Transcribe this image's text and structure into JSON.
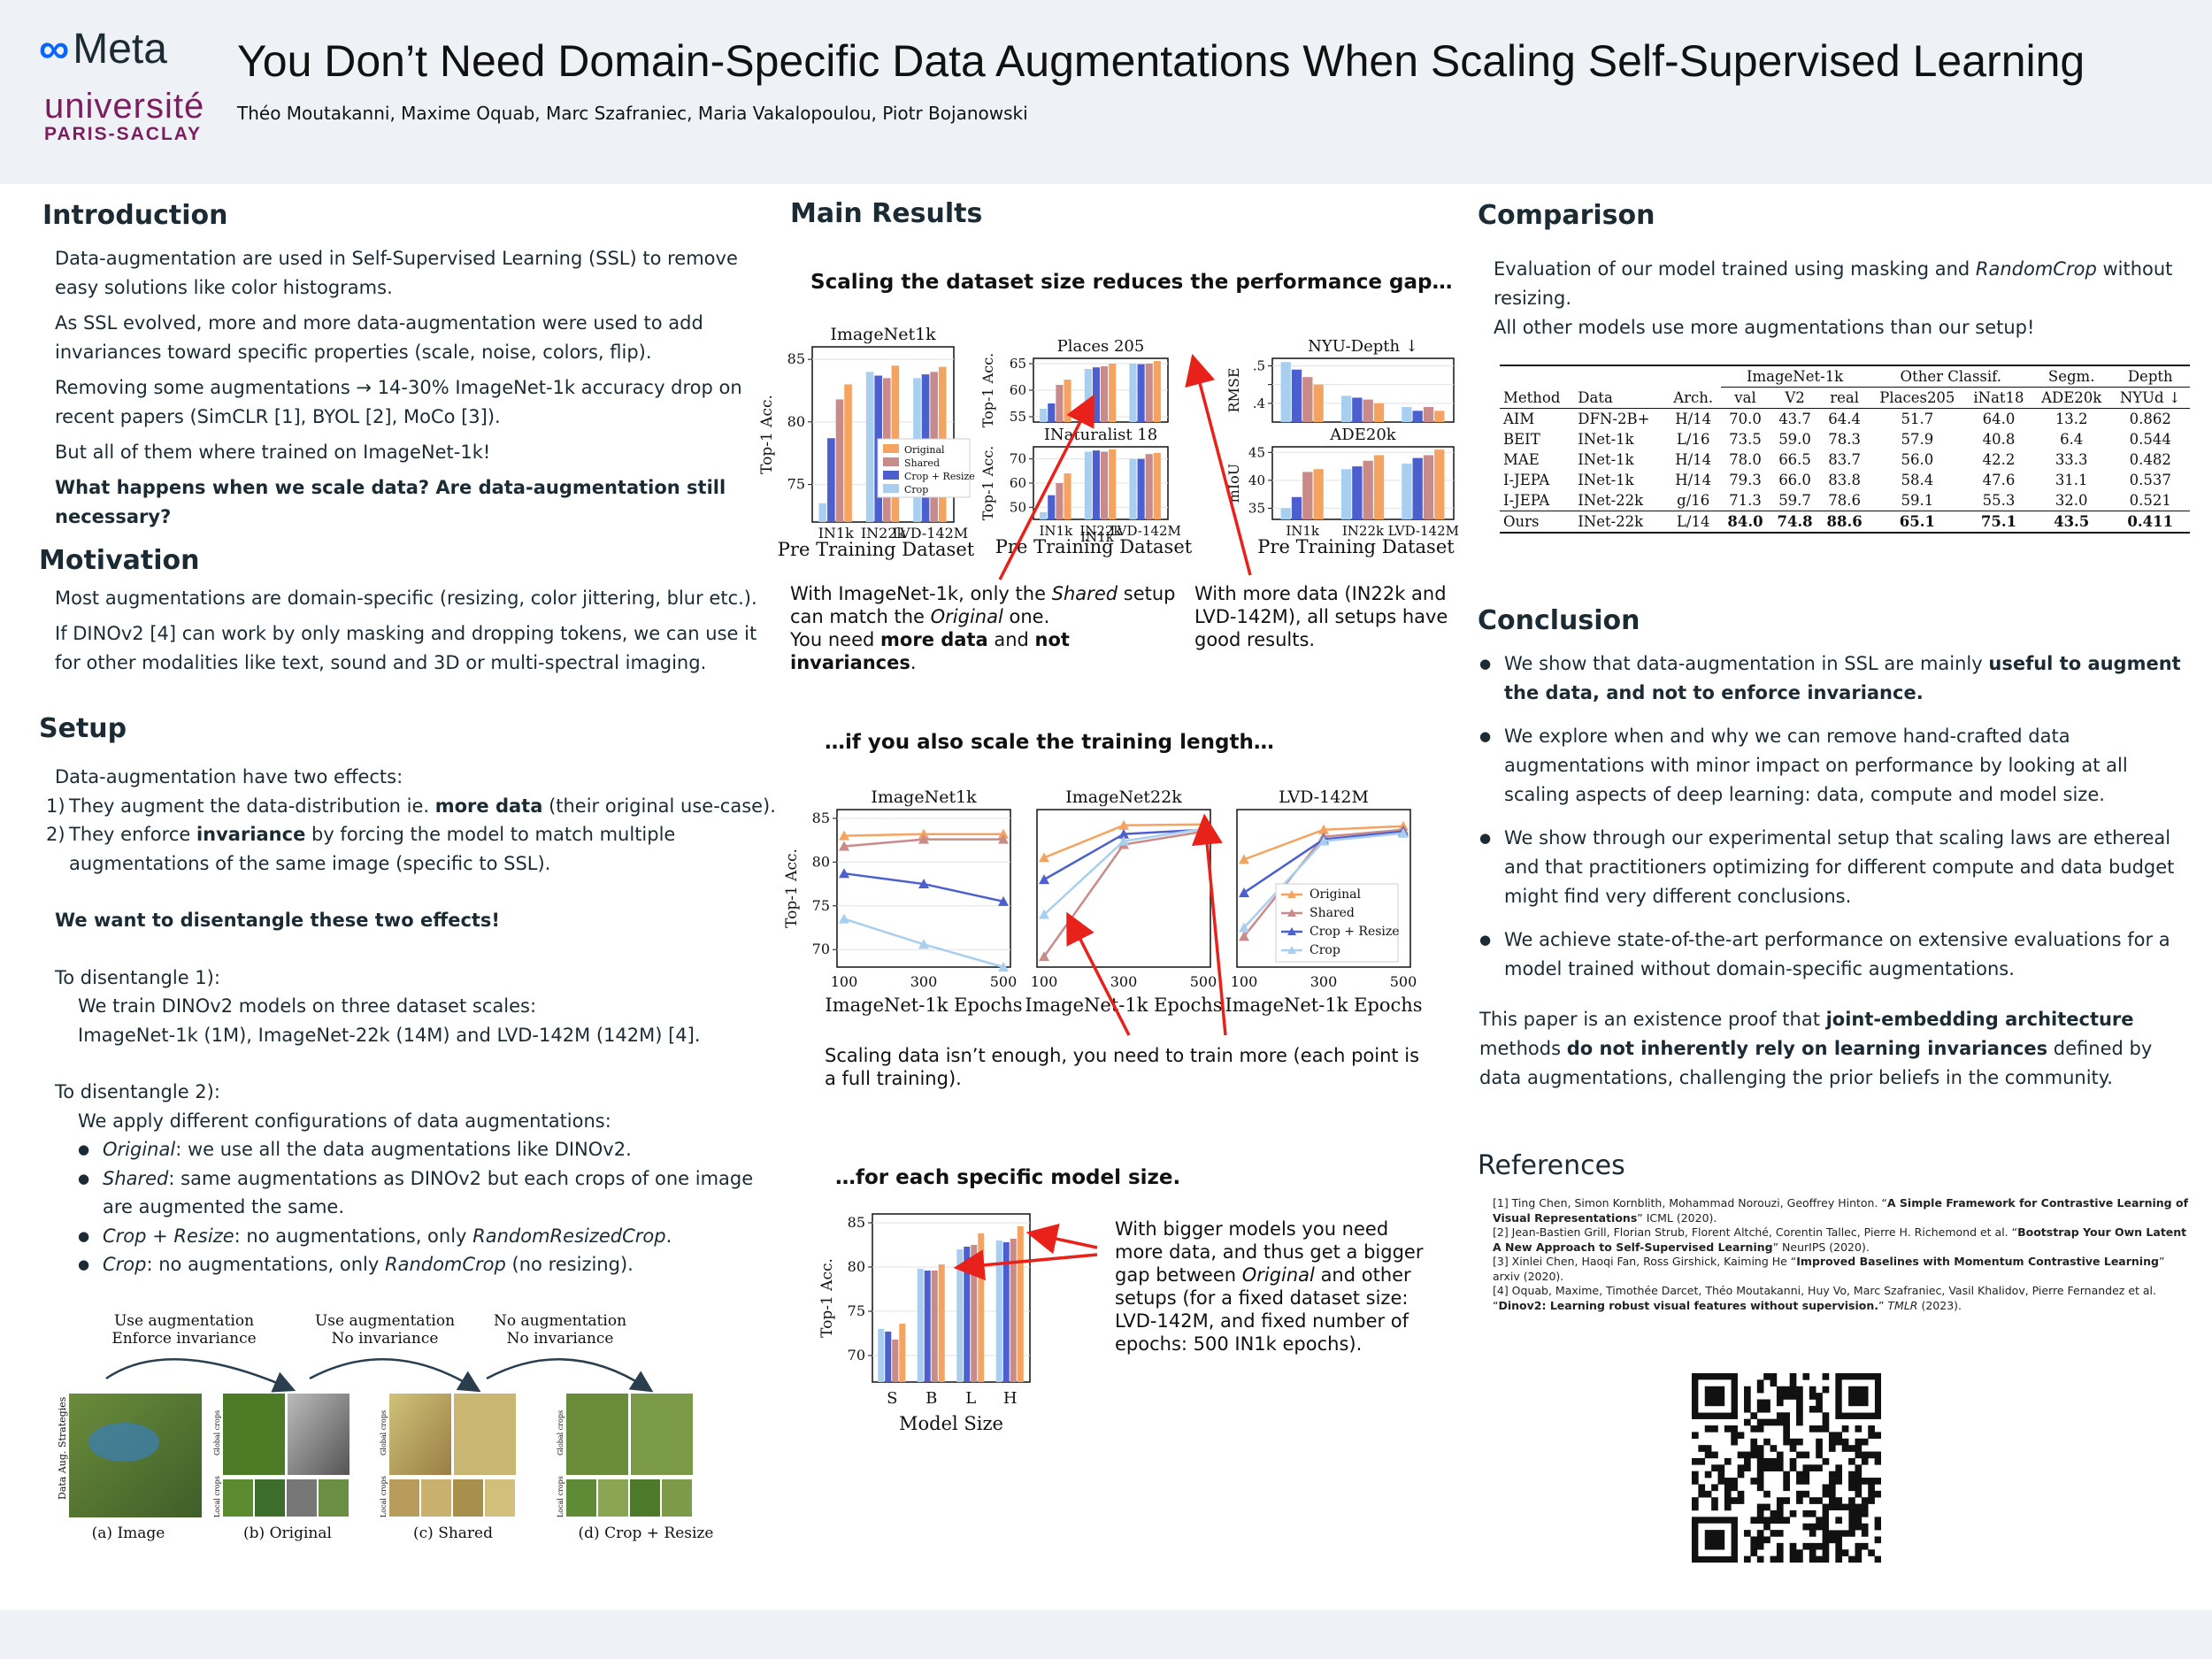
{
  "header": {
    "meta_logo": "Meta",
    "uni_line1": "université",
    "uni_line2": "PARIS-SACLAY",
    "title": "You Don’t Need Domain-Specific Data Augmentations When Scaling Self-Supervised Learning",
    "authors": "Théo Moutakanni, Maxime Oquab, Marc Szafraniec,  Maria Vakalopoulou, Piotr Bojanowski"
  },
  "intro": {
    "heading": "Introduction",
    "p1": "Data-augmentation are used in Self-Supervised Learning (SSL) to remove easy solutions like color histograms.",
    "p2": "As SSL evolved, more and more data-augmentation were used to add invariances toward specific properties (scale, noise, colors, flip).",
    "p3": "Removing some augmentations → 14-30% ImageNet-1k accuracy drop on recent papers (SimCLR [1], BYOL [2], MoCo [3]).",
    "p4": "But all of them where trained on ImageNet-1k!",
    "p5": "What happens when we scale data? Are data-augmentation still necessary?"
  },
  "motivation": {
    "heading": "Motivation",
    "p1": "Most augmentations are domain-specific (resizing, color jittering, blur etc.).",
    "p2": "If DINOv2 [4] can work by only masking and dropping tokens, we can use it for other modalities like text, sound and 3D or multi-spectral imaging."
  },
  "setup": {
    "heading": "Setup",
    "l1": "Data-augmentation have two effects:",
    "i1_num": "1)",
    "i1_a": "They augment the data-distribution ie. ",
    "i1_b": "more data",
    "i1_c": " (their original use-case).",
    "i2_num": "2)",
    "i2_a": "They enforce ",
    "i2_b": "invariance",
    "i2_c": " by forcing the model to match multiple augmentations of the same image (specific to SSL).",
    "l2": "We want to disentangle these two effects!",
    "l3": "To disentangle 1):",
    "l4": "We train DINOv2 models on three dataset scales:",
    "l5": "ImageNet-1k (1M), ImageNet-22k (14M) and LVD-142M (142M) [4].",
    "l6": "To disentangle 2):",
    "l7": "We apply different configurations of data augmentations:",
    "b1a": "Original",
    "b1b": ": we use all the data augmentations like DINOv2.",
    "b2a": "Shared",
    "b2b": ": same augmentations as DINOv2 but each crops of one image are augmented the same.",
    "b3a": "Crop + Resize",
    "b3b": ": no augmentations, only ",
    "b3c": "RandomResizedCrop",
    "b3d": ".",
    "b4a": "Crop",
    "b4b": ": no augmentations, only ",
    "b4c": "RandomCrop",
    "b4d": " (no resizing).",
    "fig": {
      "top1a": "Use augmentation",
      "top1b": "Enforce invariance",
      "top2a": "Use augmentation",
      "top2b": "No invariance",
      "top3a": "No augmentation",
      "top3b": "No invariance",
      "side_label": "Data Aug. Strategies",
      "global": "Global crops",
      "local": "Local crops",
      "cap_a": "(a) Image",
      "cap_b": "(b) Original",
      "cap_c": "(c) Shared",
      "cap_d": "(d) Crop + Resize"
    }
  },
  "main": {
    "heading": "Main Results",
    "sub1": "Scaling the dataset size reduces the performance gap…",
    "sub2": "…if you also scale the training length…",
    "sub3": "…for each specific model size.",
    "cap1a": "With ImageNet-1k, only the ",
    "cap1b": "Shared",
    "cap1c": " setup can match the ",
    "cap1d": "Original",
    "cap1e": " one.",
    "cap1f": "You need ",
    "cap1g": "more data",
    "cap1h": " and ",
    "cap1i": "not invariances",
    "cap1j": ".",
    "cap2": "With more data (IN22k and LVD-142M), all setups have good results.",
    "cap3": "Scaling data isn’t enough, you need to train more (each point is a full training).",
    "cap4a": "With bigger models you need more data, and thus get a bigger gap between ",
    "cap4b": "Original",
    "cap4c": " and other setups (for a fixed dataset size: LVD-142M, and fixed number of epochs: 500 IN1k epochs)."
  },
  "colors": {
    "original": "#f4a460",
    "shared": "#c98a8a",
    "crop_resize": "#4c5fcf",
    "crop": "#a8cff0",
    "arrow": "#e8211a"
  },
  "chart_data": [
    {
      "type": "bar",
      "title": "ImageNet1k",
      "xlabel": "Pre Training  Dataset",
      "ylabel": "Top-1 Acc.",
      "categories": [
        "IN1k",
        "IN22k",
        "LVD-142M"
      ],
      "ylim": [
        72,
        86
      ],
      "yticks": [
        75,
        80,
        85
      ],
      "series": [
        {
          "name": "Crop",
          "values": [
            73.5,
            84.0,
            83.5
          ]
        },
        {
          "name": "Crop + Resize",
          "values": [
            78.7,
            83.7,
            83.8
          ]
        },
        {
          "name": "Shared",
          "values": [
            81.8,
            83.5,
            84.0
          ]
        },
        {
          "name": "Original",
          "values": [
            83.0,
            84.5,
            84.4
          ]
        }
      ],
      "legend": [
        "Original",
        "Shared",
        "Crop + Resize",
        "Crop"
      ]
    },
    {
      "type": "bar",
      "title": "Places 205",
      "ylabel": "Top-1 Acc.",
      "categories": [
        "IN1k",
        "IN22k",
        "LVD-142M"
      ],
      "ylim": [
        54,
        66
      ],
      "yticks": [
        55,
        60,
        65
      ],
      "series": [
        {
          "name": "Crop",
          "values": [
            56.5,
            64.0,
            65.0
          ]
        },
        {
          "name": "Crop + Resize",
          "values": [
            57.5,
            64.3,
            64.9
          ]
        },
        {
          "name": "Shared",
          "values": [
            61.0,
            64.5,
            65.0
          ]
        },
        {
          "name": "Original",
          "values": [
            62.0,
            65.0,
            65.5
          ]
        }
      ]
    },
    {
      "type": "bar",
      "title": "NYU-Depth ↓",
      "ylabel": "RMSE",
      "categories": [
        "IN1k",
        "IN22k",
        "LVD-142M"
      ],
      "ylim": [
        0.35,
        0.52
      ],
      "yticks": [
        0.4,
        0.45,
        0.5
      ],
      "ytick_labels": [
        ".4",
        "",
        ".5"
      ],
      "series": [
        {
          "name": "Crop",
          "values": [
            0.51,
            0.42,
            0.39
          ]
        },
        {
          "name": "Crop + Resize",
          "values": [
            0.49,
            0.415,
            0.38
          ]
        },
        {
          "name": "Shared",
          "values": [
            0.47,
            0.41,
            0.39
          ]
        },
        {
          "name": "Original",
          "values": [
            0.45,
            0.4,
            0.38
          ]
        }
      ]
    },
    {
      "type": "bar",
      "title": "INaturalist 18",
      "xlabel": "Pre Training  Dataset",
      "ylabel": "Top-1 Acc.",
      "categories": [
        "IN1k",
        "IN22k",
        "LVD-142M"
      ],
      "ylim": [
        45,
        75
      ],
      "yticks": [
        50,
        60,
        70
      ],
      "series": [
        {
          "name": "Crop",
          "values": [
            48,
            73,
            70
          ]
        },
        {
          "name": "Crop + Resize",
          "values": [
            55,
            73.5,
            70
          ]
        },
        {
          "name": "Shared",
          "values": [
            60,
            73,
            72
          ]
        },
        {
          "name": "Original",
          "values": [
            64,
            74,
            72.5
          ]
        }
      ]
    },
    {
      "type": "bar",
      "title": "ADE20k",
      "xlabel": "Pre Training  Dataset",
      "ylabel": "mIoU",
      "categories": [
        "IN1k",
        "IN22k",
        "LVD-142M"
      ],
      "ylim": [
        33,
        46
      ],
      "yticks": [
        35,
        40,
        45
      ],
      "series": [
        {
          "name": "Crop",
          "values": [
            35,
            42,
            43
          ]
        },
        {
          "name": "Crop + Resize",
          "values": [
            37,
            42.5,
            44
          ]
        },
        {
          "name": "Shared",
          "values": [
            41.5,
            43.5,
            44.5
          ]
        },
        {
          "name": "Original",
          "values": [
            42,
            44.5,
            45.5
          ]
        }
      ]
    },
    {
      "type": "line",
      "title": "ImageNet1k",
      "xlabel": "ImageNet-1k Epochs",
      "ylabel": "Top-1 Acc.",
      "x": [
        100,
        300,
        500
      ],
      "ylim": [
        68,
        86
      ],
      "yticks": [
        70,
        75,
        80,
        85
      ],
      "series": [
        {
          "name": "Original",
          "values": [
            83.0,
            83.2,
            83.2
          ]
        },
        {
          "name": "Shared",
          "values": [
            81.8,
            82.6,
            82.6
          ]
        },
        {
          "name": "Crop + Resize",
          "values": [
            78.7,
            77.5,
            75.5
          ]
        },
        {
          "name": "Crop",
          "values": [
            73.5,
            70.6,
            68.0
          ]
        }
      ]
    },
    {
      "type": "line",
      "title": "ImageNet22k",
      "xlabel": "ImageNet-1k Epochs",
      "x": [
        100,
        300,
        500
      ],
      "ylim": [
        68,
        86
      ],
      "series": [
        {
          "name": "Original",
          "values": [
            80.5,
            84.2,
            84.3
          ]
        },
        {
          "name": "Shared",
          "values": [
            69.2,
            82.0,
            83.5
          ]
        },
        {
          "name": "Crop + Resize",
          "values": [
            78.0,
            83.2,
            83.7
          ]
        },
        {
          "name": "Crop",
          "values": [
            74.0,
            82.4,
            83.8
          ]
        }
      ]
    },
    {
      "type": "line",
      "title": "LVD-142M",
      "xlabel": "ImageNet-1k Epochs",
      "x": [
        100,
        300,
        500
      ],
      "ylim": [
        68,
        86
      ],
      "series": [
        {
          "name": "Original",
          "values": [
            80.3,
            83.7,
            84.1
          ]
        },
        {
          "name": "Shared",
          "values": [
            71.5,
            82.9,
            83.7
          ]
        },
        {
          "name": "Crop + Resize",
          "values": [
            76.5,
            82.6,
            83.5
          ]
        },
        {
          "name": "Crop",
          "values": [
            72.5,
            82.4,
            83.3
          ]
        }
      ],
      "legend": [
        "Original",
        "Shared",
        "Crop + Resize",
        "Crop"
      ]
    },
    {
      "type": "bar",
      "xlabel": "Model Size",
      "ylabel": "Top-1 Acc.",
      "categories": [
        "S",
        "B",
        "L",
        "H"
      ],
      "ylim": [
        67,
        86
      ],
      "yticks": [
        70,
        75,
        80,
        85
      ],
      "series": [
        {
          "name": "Crop",
          "values": [
            73.0,
            79.8,
            82.0,
            83.0
          ]
        },
        {
          "name": "Crop + Resize",
          "values": [
            72.7,
            79.6,
            82.3,
            82.8
          ]
        },
        {
          "name": "Shared",
          "values": [
            71.8,
            79.6,
            82.5,
            83.2
          ]
        },
        {
          "name": "Original",
          "values": [
            73.6,
            80.3,
            83.8,
            84.6
          ]
        }
      ]
    }
  ],
  "comparison": {
    "heading": "Comparison",
    "p1a": "Evaluation of our model trained using masking and ",
    "p1b": "RandomCrop",
    "p1c": " without resizing.",
    "p2": "All other models use more augmentations than our setup!",
    "table": {
      "group_headers": [
        "ImageNet-1k",
        "Other Classif.",
        "Segm.",
        "Depth"
      ],
      "columns": [
        "Method",
        "Data",
        "Arch.",
        "val",
        "V2",
        "real",
        "Places205",
        "iNat18",
        "ADE20k",
        "NYUd ↓"
      ],
      "rows": [
        [
          "AIM",
          "DFN-2B+",
          "H/14",
          "70.0",
          "43.7",
          "64.4",
          "51.7",
          "64.0",
          "13.2",
          "0.862"
        ],
        [
          "BEIT",
          "INet-1k",
          "L/16",
          "73.5",
          "59.0",
          "78.3",
          "57.9",
          "40.8",
          "6.4",
          "0.544"
        ],
        [
          "MAE",
          "INet-1k",
          "H/14",
          "78.0",
          "66.5",
          "83.7",
          "56.0",
          "42.2",
          "33.3",
          "0.482"
        ],
        [
          "I-JEPA",
          "INet-1k",
          "H/14",
          "79.3",
          "66.0",
          "83.8",
          "58.4",
          "47.6",
          "31.1",
          "0.537"
        ],
        [
          "I-JEPA",
          "INet-22k",
          "g/16",
          "71.3",
          "59.7",
          "78.6",
          "59.1",
          "55.3",
          "32.0",
          "0.521"
        ]
      ],
      "ours": [
        "Ours",
        "INet-22k",
        "L/14",
        "84.0",
        "74.8",
        "88.6",
        "65.1",
        "75.1",
        "43.5",
        "0.411"
      ]
    }
  },
  "conclusion": {
    "heading": "Conclusion",
    "b1a": "We show that data-augmentation in SSL  are mainly ",
    "b1b": "useful to augment the data, and not to enforce invariance.",
    "b2": "We explore when and why we can remove hand-crafted data augmentations with minor impact on performance by looking at all scaling aspects of deep learning: data, compute and model size.",
    "b3": "We show through our experimental setup that scaling laws are ethereal and that practitioners optimizing for different compute and data budget might find very different conclusions.",
    "b4": "We achieve state-of-the-art performance on extensive evaluations for a model trained without domain-specific augmentations.",
    "p1": " This paper is an existence proof that ",
    "p2": "joint-embedding architecture",
    "p3": " methods ",
    "p4": "do not inherently rely on learning invariances",
    "p5": " defined by data augmentations, challenging the prior beliefs in the community."
  },
  "references": {
    "heading": "References",
    "r1a": "[1] Ting Chen, Simon Kornblith, Mohammad Norouzi, Geoffrey Hinton. “",
    "r1b": "A Simple Framework for Contrastive Learning of Visual Representations",
    "r1c": "” ICML (2020).",
    "r2a": "[2] Jean-Bastien Grill, Florian Strub, Florent Altché, Corentin Tallec, Pierre H. Richemond et al. “",
    "r2b": "Bootstrap Your Own Latent A New Approach to Self-Supervised Learning",
    "r2c": "” NeurIPS (2020).",
    "r3a": "[3] Xinlei Chen, Haoqi Fan, Ross Girshick, Kaiming He “",
    "r3b": "Improved Baselines with Momentum Contrastive Learning",
    "r3c": "” arxiv (2020).",
    "r4a": "[4] Oquab, Maxime, Timothée Darcet, Théo Moutakanni, Huy Vo, Marc Szafraniec, Vasil Khalidov, Pierre Fernandez et al. “",
    "r4b": "Dinov2: Learning robust visual features without supervision.",
    "r4c": "” ",
    "r4d": "TMLR",
    "r4e": " (2023)."
  }
}
